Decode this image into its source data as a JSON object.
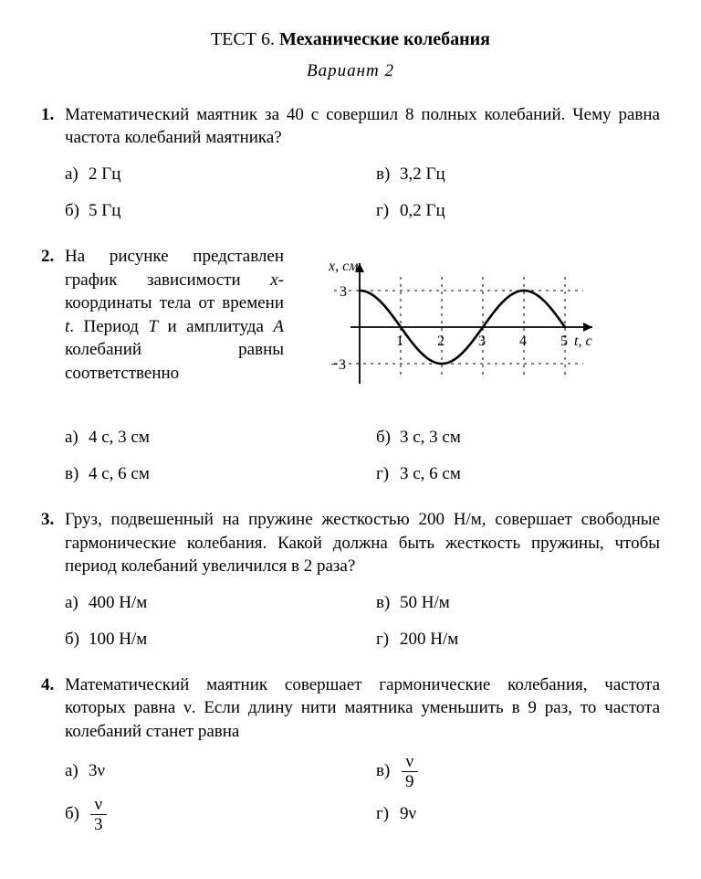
{
  "title_label": "ТЕСТ 6.",
  "title_name": "Механические колебания",
  "subtitle": "Вариант 2",
  "q1": {
    "num": "1.",
    "text": "Математический маятник за 40 с совершил 8 полных колебаний. Чему равна частота колебаний маятника?",
    "a": "а)",
    "a_val": "2 Гц",
    "b": "б)",
    "b_val": "5 Гц",
    "v": "в)",
    "v_val": "3,2 Гц",
    "g": "г)",
    "g_val": "0,2 Гц"
  },
  "q2": {
    "num": "2.",
    "text_parts": {
      "p1": "На рисунке представлен график зависимости ",
      "x": "x",
      "p2": "-координаты тела от времени ",
      "t": "t",
      "p3": ". Период ",
      "Tcap": "T",
      "p4": " и амплитуда ",
      "A": "A",
      "p5": " колебаний равны соответственно"
    },
    "a": "а)",
    "a_val": "4 с, 3 см",
    "b": "б)",
    "b_val": "3 с, 3 см",
    "v": "в)",
    "v_val": "4 с, 6 см",
    "g": "г)",
    "g_val": "3 с, 6 см",
    "chart": {
      "y_label": "x, см",
      "x_label": "t, с",
      "amplitude": 3,
      "period": 4,
      "xrange": [
        0,
        5
      ],
      "xticks": [
        "1",
        "2",
        "3",
        "4",
        "5"
      ],
      "yticks_pos": "3",
      "yticks_neg": "−3",
      "axis_color": "#000000",
      "curve_color": "#000000",
      "dash_color": "#000000",
      "background": "#ffffff",
      "curve_width": 2.6,
      "font_size": 16
    }
  },
  "q3": {
    "num": "3.",
    "text": "Груз, подвешенный на пружине жесткостью 200 Н/м, совершает свободные гармонические колебания. Какой должна быть жесткость пружины, чтобы период колебаний увеличился в 2 раза?",
    "a": "а)",
    "a_val": "400 Н/м",
    "b": "б)",
    "b_val": "100 Н/м",
    "v": "в)",
    "v_val": "50 Н/м",
    "g": "г)",
    "g_val": "200 Н/м"
  },
  "q4": {
    "num": "4.",
    "text": "Математический маятник совершает гармонические колебания, частота которых равна ν. Если длину нити маятника уменьшить в 9 раз, то частота колебаний станет равна",
    "a": "а)",
    "a_val": "3ν",
    "b": "б)",
    "b_num": "ν",
    "b_den": "3",
    "v": "в)",
    "v_num": "ν",
    "v_den": "9",
    "g": "г)",
    "g_val": "9ν"
  }
}
